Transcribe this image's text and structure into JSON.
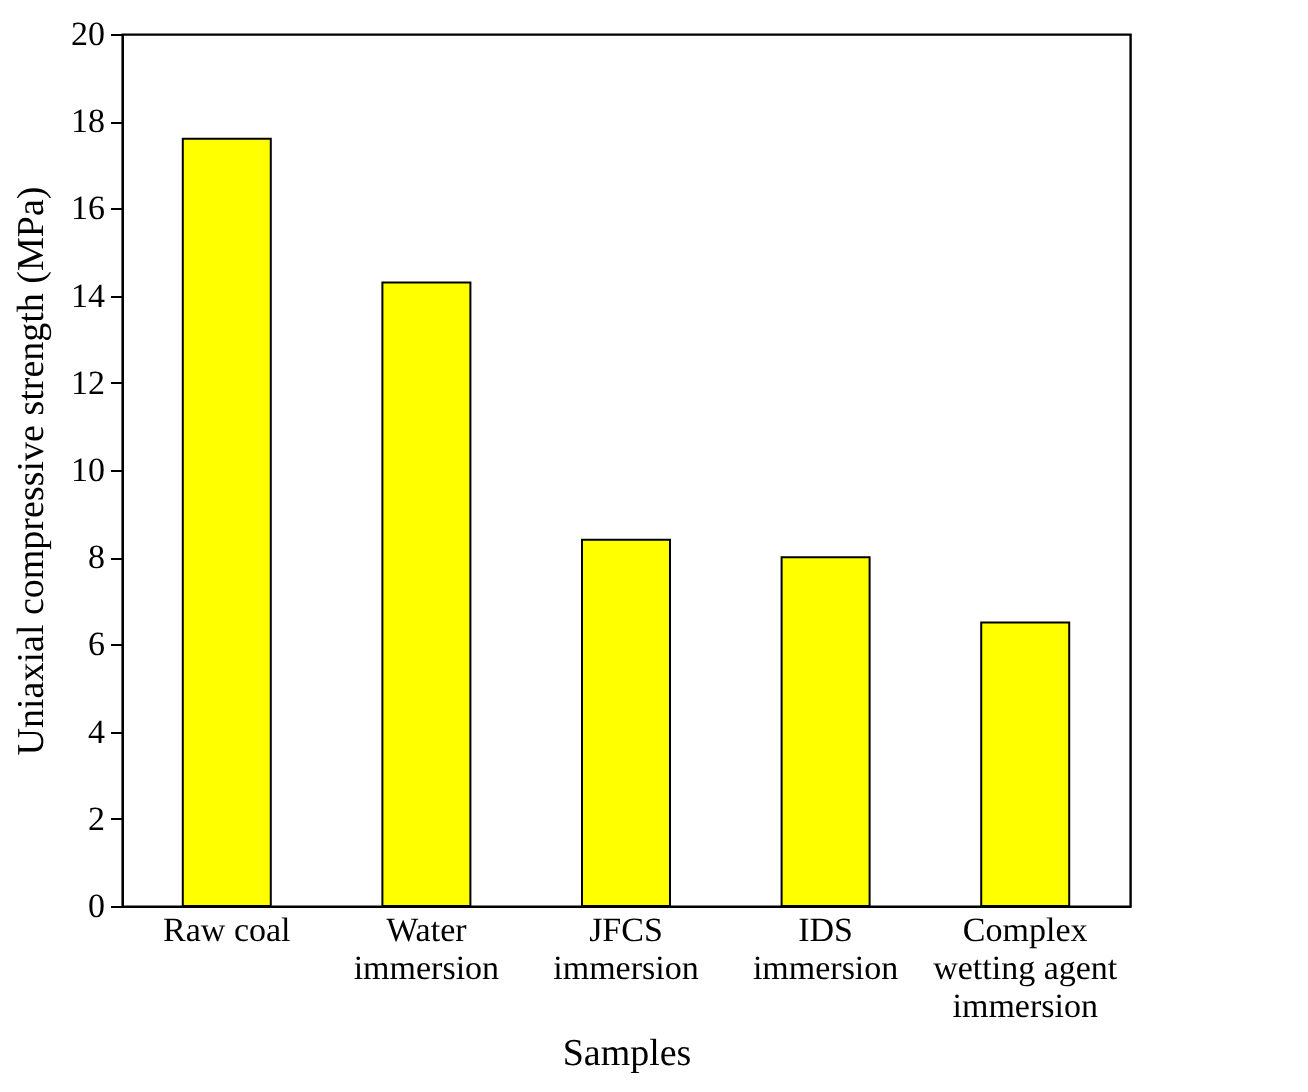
{
  "chart_data": {
    "type": "bar",
    "xlabel": "Samples",
    "ylabel": "Uniaxial compressive strength (MPa)",
    "categories": [
      "Raw coal",
      "Water\nimmersion",
      "JFCS\nimmersion",
      "IDS\nimmersion",
      "Complex\nwetting agent\nimmersion"
    ],
    "values": [
      17.6,
      14.3,
      8.4,
      8.0,
      6.5
    ],
    "color": "#ffff00",
    "ylim": [
      0,
      20
    ],
    "yticks": [
      0,
      2,
      4,
      6,
      8,
      10,
      12,
      14,
      16,
      18,
      20
    ],
    "grid": false
  }
}
